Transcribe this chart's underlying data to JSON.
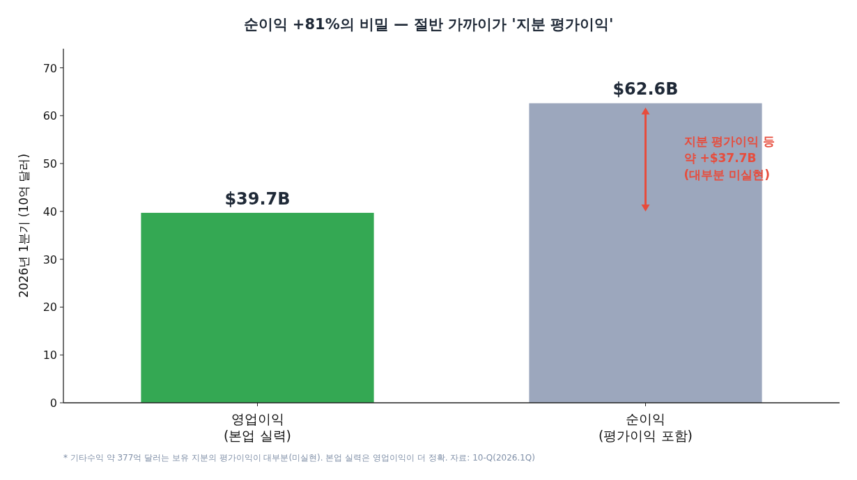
{
  "chart_data": {
    "type": "bar",
    "title": "순이익 +81%의 비밀 — 절반 가까이가 '지분 평가이익'",
    "ylabel": "2026년 1분기 (10억 달러)",
    "categories": [
      "영업이익\n(본업 실력)",
      "순이익\n(평가이익 포함)"
    ],
    "values": [
      39.7,
      62.6
    ],
    "colors": [
      "#34a853",
      "#9ca7bd"
    ],
    "value_labels": [
      "$39.7B",
      "$62.6B"
    ],
    "ylim": [
      0,
      74
    ],
    "yticks": [
      0,
      10,
      20,
      30,
      40,
      50,
      60,
      70
    ],
    "grid": false,
    "annotations": [
      "지분 평가이익 등\n약 +$37.7B\n(대부분 미실현)",
      "* 기타수익 약 377억 달러는 보유 지분의 평가이익이 대부분(미실현). 본업 실력은 영업이익이 더 정확. 자료: 10-Q(2026.1Q)"
    ]
  }
}
